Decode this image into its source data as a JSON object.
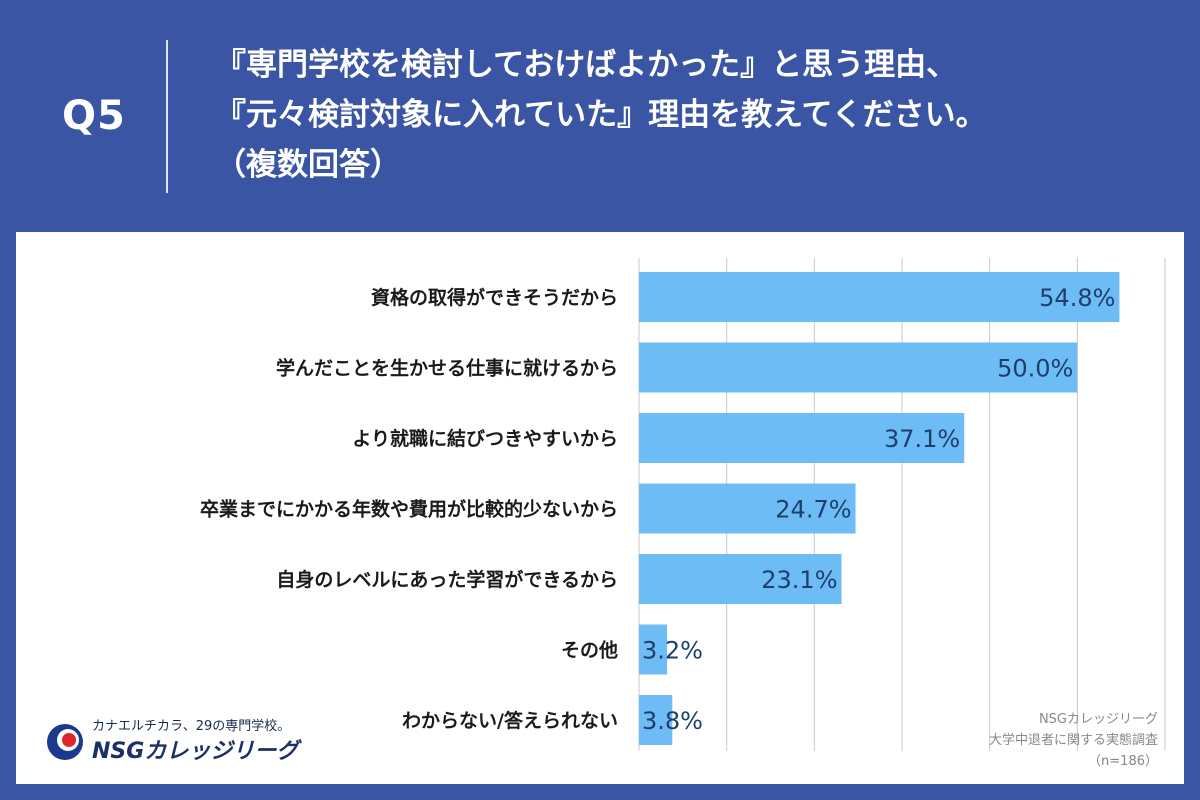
{
  "header": {
    "question_label": "Q5",
    "title_lines": [
      "『専門学校を検討しておけばよかった』と思う理由、",
      "『元々検討対象に入れていた』理由を教えてください。",
      "（複数回答）"
    ]
  },
  "logo": {
    "tagline": "カナエルチカラ、29の専門学校。",
    "name": "NSGカレッジリーグ"
  },
  "source": {
    "lines": [
      "NSGカレッジリーグ",
      "大学中退者に関する実態調査",
      "（n=186）"
    ]
  },
  "colors": {
    "background": "#3a55a4",
    "bar": "#6ebcf5",
    "value_label": "#1e3f6e",
    "gridline": "#c8c8c8"
  },
  "chart_data": {
    "type": "bar",
    "orientation": "horizontal",
    "categories": [
      "資格の取得ができそうだから",
      "学んだことを生かせる仕事に就けるから",
      "より就職に結びつきやすいから",
      "卒業までにかかる年数や費用が比較的少ないから",
      "自身のレベルにあった学習ができるから",
      "その他",
      "わからない/答えられない"
    ],
    "values": [
      54.8,
      50.0,
      37.1,
      24.7,
      23.1,
      3.2,
      3.8
    ],
    "value_labels": [
      "54.8%",
      "50.0%",
      "37.1%",
      "24.7%",
      "23.1%",
      "3.2%",
      "3.8%"
    ],
    "unit": "%",
    "xlim": [
      0,
      60
    ],
    "grid": true
  }
}
